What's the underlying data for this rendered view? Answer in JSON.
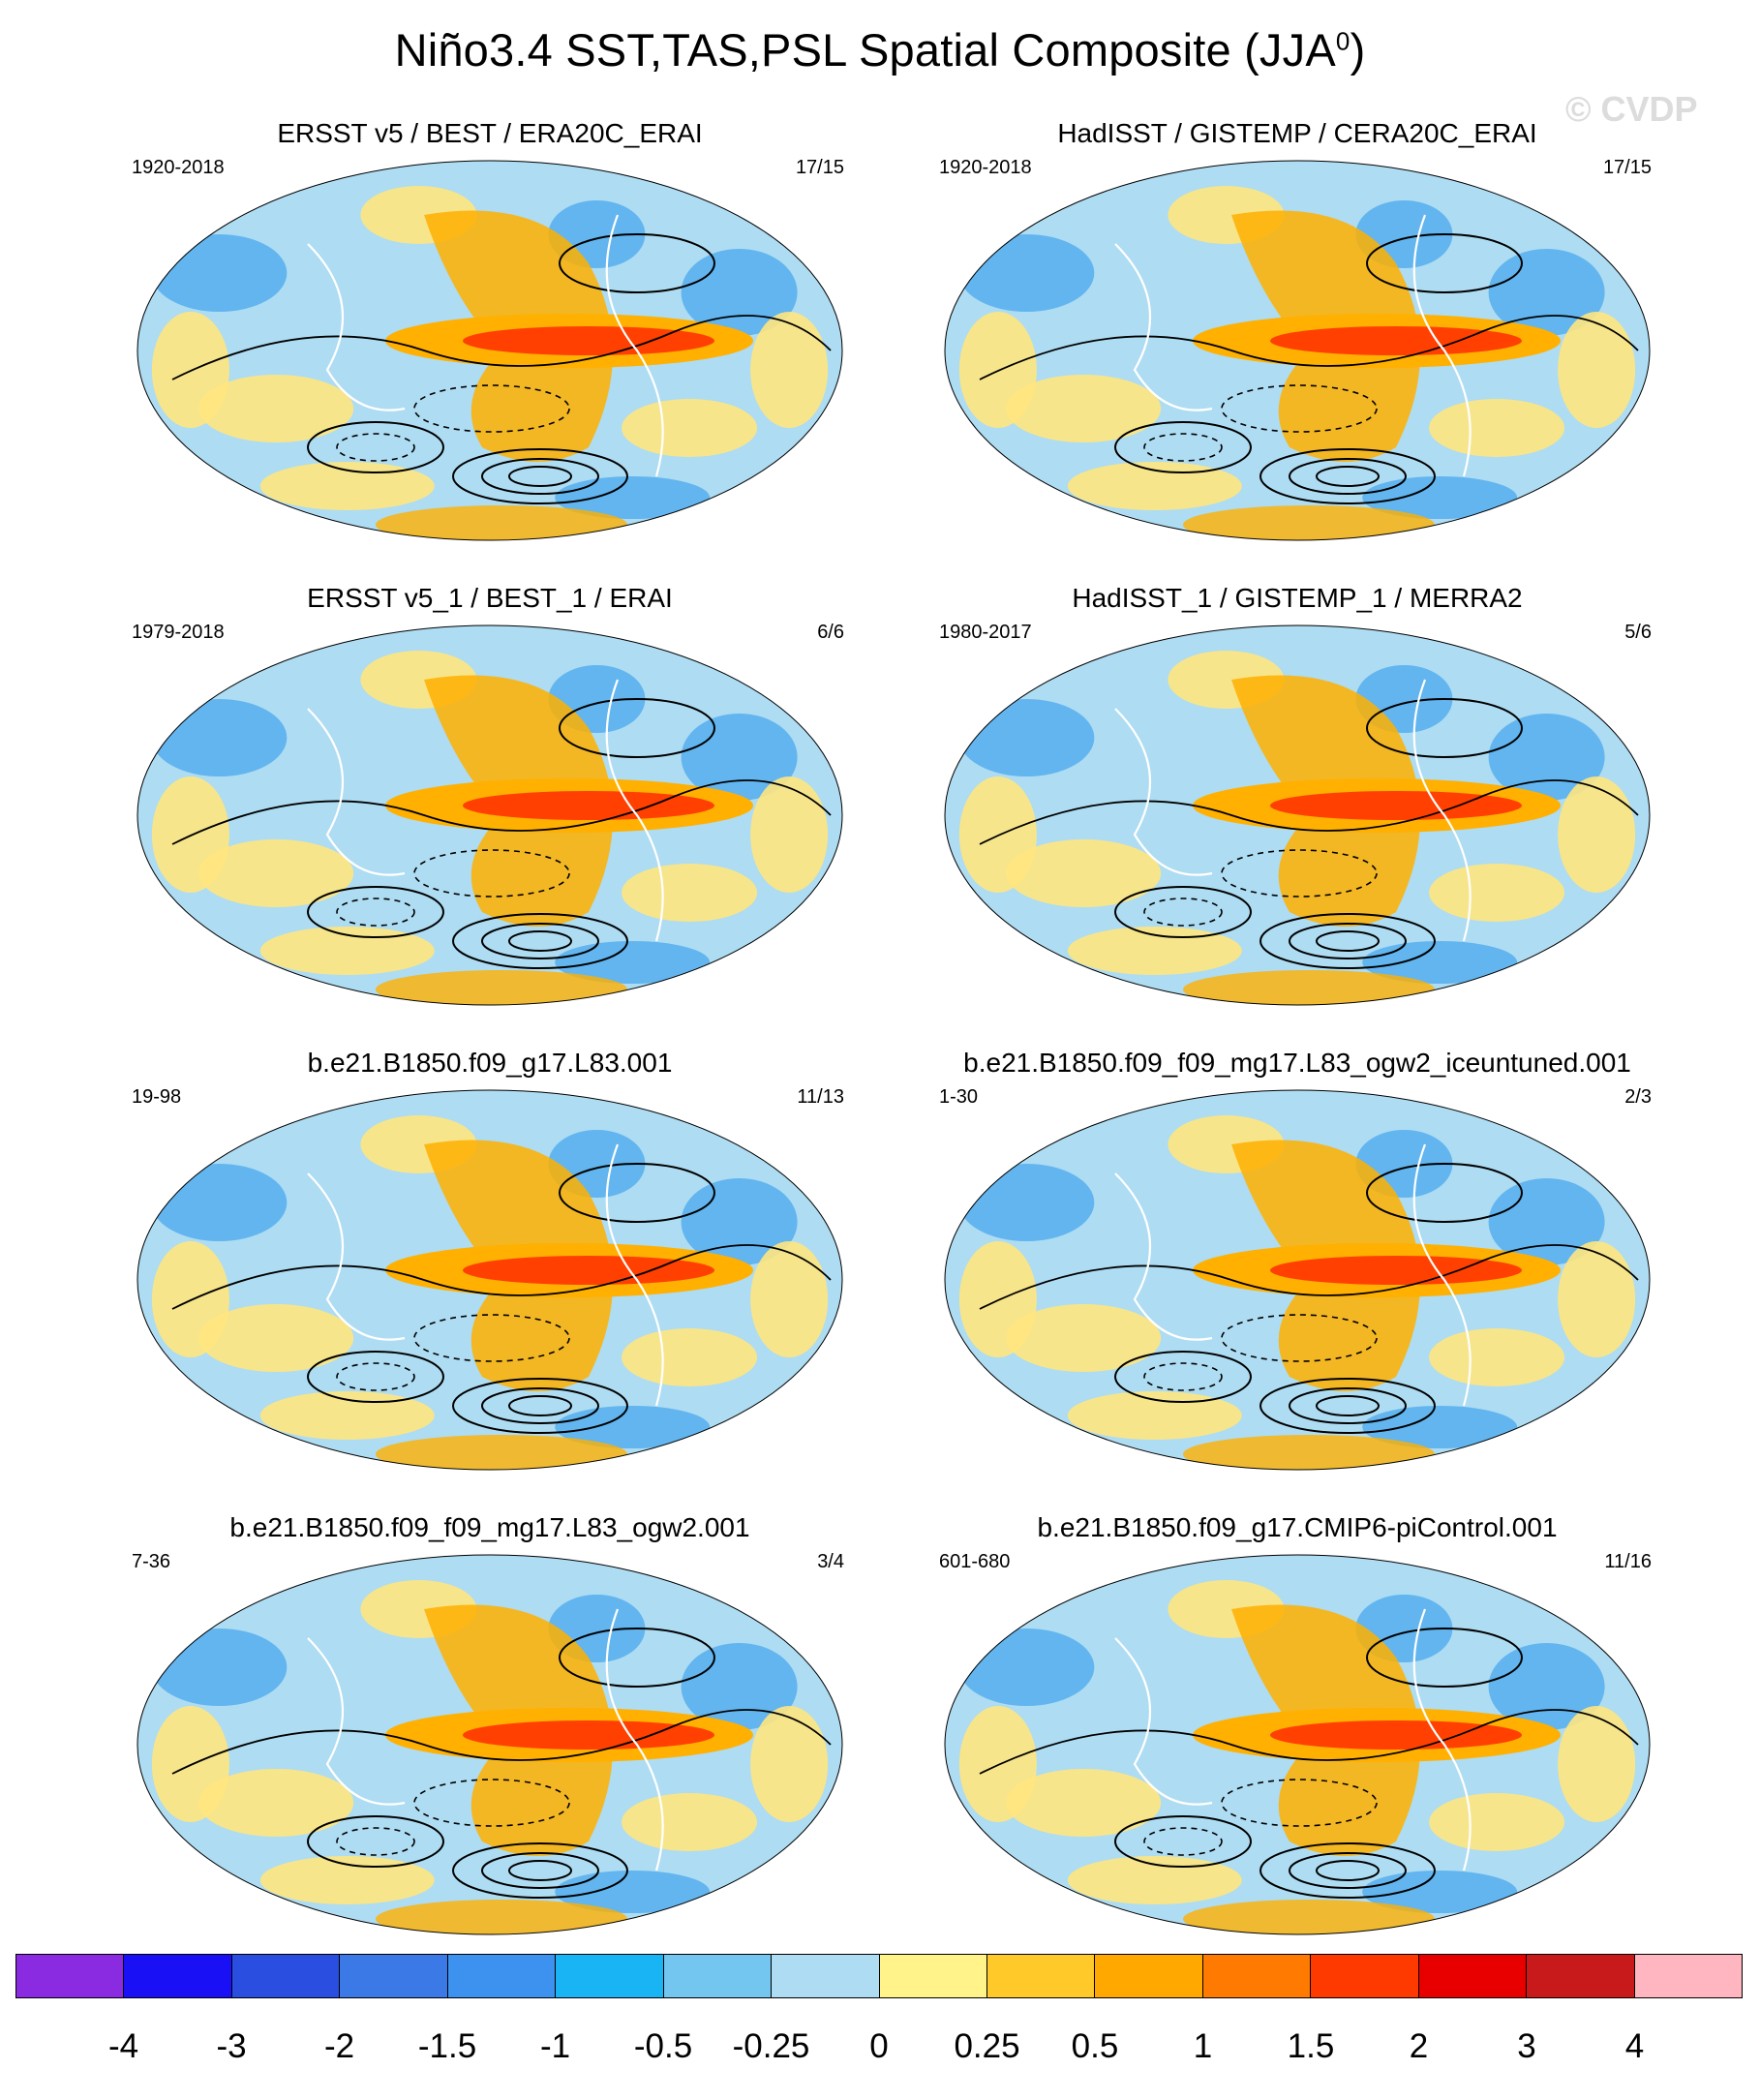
{
  "header": {
    "title_main": "Niño3.4 SST,TAS,PSL Spatial Composite (JJA",
    "title_sup": "0",
    "title_close": ")",
    "watermark": "© CVDP"
  },
  "panels": [
    {
      "title": "ERSST v5 / BEST / ERA20C_ERAI",
      "years": "1920-2018",
      "count": "17/15"
    },
    {
      "title": "HadISST / GISTEMP / CERA20C_ERAI",
      "years": "1920-2018",
      "count": "17/15"
    },
    {
      "title": "ERSST v5_1 / BEST_1 / ERAI",
      "years": "1979-2018",
      "count": "6/6"
    },
    {
      "title": "HadISST_1 / GISTEMP_1 / MERRA2",
      "years": "1980-2017",
      "count": "5/6"
    },
    {
      "title": "b.e21.B1850.f09_g17.L83.001",
      "years": "19-98",
      "count": "11/13"
    },
    {
      "title": "b.e21.B1850.f09_f09_mg17.L83_ogw2_iceuntuned.001",
      "years": "1-30",
      "count": "2/3"
    },
    {
      "title": "b.e21.B1850.f09_f09_mg17.L83_ogw2.001",
      "years": "7-36",
      "count": "3/4"
    },
    {
      "title": "b.e21.B1850.f09_g17.CMIP6-piControl.001",
      "years": "601-680",
      "count": "11/16"
    }
  ],
  "colorbar": {
    "colors": [
      "#8a2be2",
      "#1a10f5",
      "#2a4fe0",
      "#3a79e6",
      "#3d92f0",
      "#18b4f4",
      "#72c6ef",
      "#aedcf2",
      "#fff38a",
      "#ffc92a",
      "#ffa800",
      "#ff7a00",
      "#ff3a00",
      "#e80000",
      "#c81a1a",
      "#ffb6c1"
    ],
    "tick_labels": [
      "-4",
      "-3",
      "-2",
      "-1.5",
      "-1",
      "-0.5",
      "-0.25",
      "0",
      "0.25",
      "0.5",
      "1",
      "1.5",
      "2",
      "3",
      "4"
    ]
  },
  "colors": {
    "land_bg": "#ffe680",
    "ocean_bg": "#aedcf2",
    "warm": "#ffb000",
    "hot": "#ff4000",
    "cold": "#5ab0ee"
  }
}
